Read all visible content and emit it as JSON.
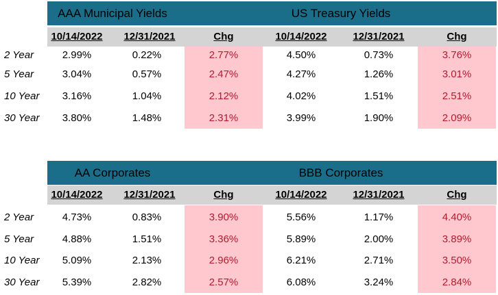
{
  "tables": [
    {
      "groups": [
        {
          "title": "AAA Municipal Yields",
          "headers": [
            "10/14/2022",
            "12/31/2021",
            "Chg"
          ]
        },
        {
          "title": "US Treasury Yields",
          "headers": [
            "10/14/2022",
            "12/31/2021",
            "Chg"
          ]
        }
      ],
      "rows": [
        {
          "label": "2 Year",
          "values": [
            "2.99%",
            "0.22%",
            "2.77%",
            "4.50%",
            "0.73%",
            "3.76%"
          ]
        },
        {
          "label": "5 Year",
          "values": [
            "3.04%",
            "0.57%",
            "2.47%",
            "4.27%",
            "1.26%",
            "3.01%"
          ]
        },
        {
          "label": "10 Year",
          "values": [
            "3.16%",
            "1.04%",
            "2.12%",
            "4.02%",
            "1.51%",
            "2.51%"
          ]
        },
        {
          "label": "30 Year",
          "values": [
            "3.80%",
            "1.48%",
            "2.31%",
            "3.99%",
            "1.90%",
            "2.09%"
          ]
        }
      ]
    },
    {
      "groups": [
        {
          "title": "AA Corporates",
          "headers": [
            "10/14/2022",
            "12/31/2021",
            "Chg"
          ]
        },
        {
          "title": "BBB Corporates",
          "headers": [
            "10/14/2022",
            "12/31/2021",
            "Chg"
          ]
        }
      ],
      "rows": [
        {
          "label": "2 Year",
          "values": [
            "4.73%",
            "0.83%",
            "3.90%",
            "5.56%",
            "1.17%",
            "4.40%"
          ]
        },
        {
          "label": "5 Year",
          "values": [
            "4.88%",
            "1.51%",
            "3.36%",
            "5.89%",
            "2.00%",
            "3.89%"
          ]
        },
        {
          "label": "10 Year",
          "values": [
            "5.09%",
            "2.13%",
            "2.96%",
            "6.21%",
            "2.71%",
            "3.50%"
          ]
        },
        {
          "label": "30 Year",
          "values": [
            "5.39%",
            "2.82%",
            "2.57%",
            "6.08%",
            "3.24%",
            "2.84%"
          ]
        }
      ]
    }
  ],
  "colors": {
    "header_bg": "#1b6e8a",
    "subheader_bg": "#d4d4d4",
    "change_bg": "#ffc7ce",
    "change_text": "#b01c2e"
  }
}
